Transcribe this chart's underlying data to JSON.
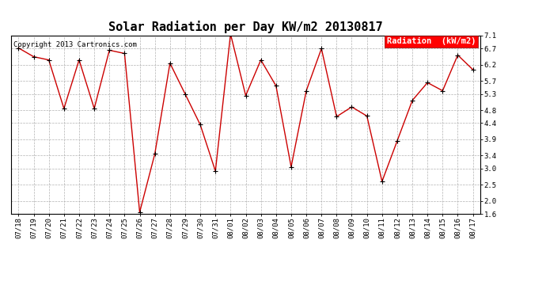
{
  "title": "Solar Radiation per Day KW/m2 20130817",
  "copyright": "Copyright 2013 Cartronics.com",
  "legend_label": "Radiation  (kW/m2)",
  "x_labels": [
    "07/18",
    "07/19",
    "07/20",
    "07/21",
    "07/22",
    "07/23",
    "07/24",
    "07/25",
    "07/26",
    "07/27",
    "07/28",
    "07/29",
    "07/30",
    "07/31",
    "08/01",
    "08/02",
    "08/03",
    "08/04",
    "08/05",
    "08/06",
    "08/07",
    "08/08",
    "08/09",
    "08/10",
    "08/11",
    "08/12",
    "08/13",
    "08/14",
    "08/15",
    "08/16",
    "08/17"
  ],
  "y_values": [
    6.72,
    6.45,
    6.35,
    4.85,
    6.35,
    4.85,
    6.65,
    6.55,
    1.65,
    3.45,
    6.25,
    5.3,
    4.35,
    2.92,
    7.15,
    5.25,
    6.35,
    5.55,
    3.05,
    5.4,
    6.7,
    4.6,
    4.9,
    4.62,
    2.6,
    3.85,
    5.1,
    5.65,
    5.4,
    6.5,
    6.05
  ],
  "line_color": "#cc0000",
  "marker_color": "#000000",
  "bg_color": "#ffffff",
  "plot_bg_color": "#ffffff",
  "grid_color": "#aaaaaa",
  "ylim": [
    1.6,
    7.1
  ],
  "yticks": [
    1.6,
    2.0,
    2.5,
    3.0,
    3.4,
    3.9,
    4.4,
    4.8,
    5.3,
    5.7,
    6.2,
    6.7,
    7.1
  ],
  "title_fontsize": 11,
  "copyright_fontsize": 6.5,
  "legend_fontsize": 7.5,
  "tick_fontsize": 6.5
}
